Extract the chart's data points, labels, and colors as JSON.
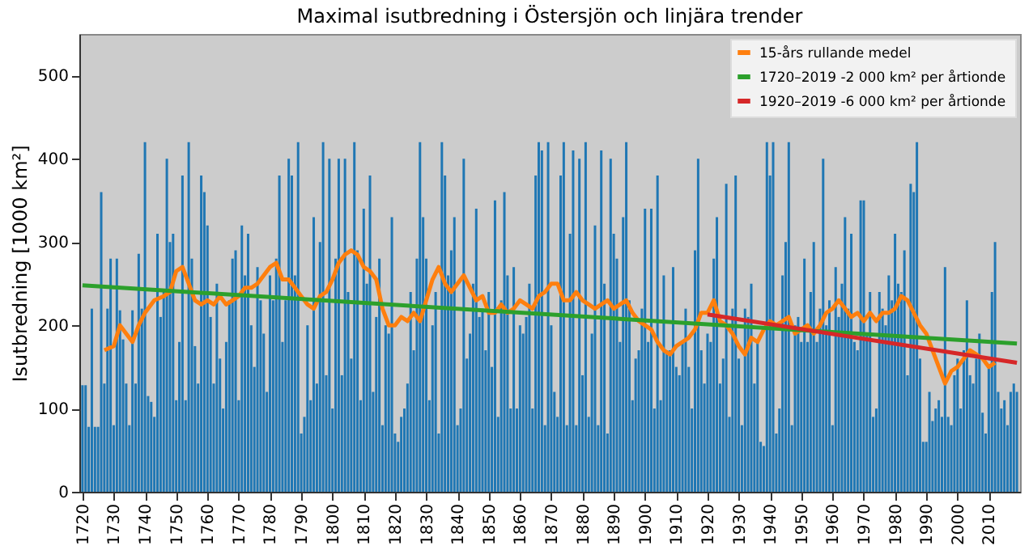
{
  "chart_data": {
    "type": "bar",
    "title": "Maximal isutbredning i Östersjön och linjära trender",
    "ylabel": "Isutbredning [1000 km²]",
    "xlim": [
      1719,
      2020
    ],
    "xticks": [
      1720,
      1730,
      1740,
      1750,
      1760,
      1770,
      1780,
      1790,
      1800,
      1810,
      1820,
      1830,
      1840,
      1850,
      1860,
      1870,
      1880,
      1890,
      1900,
      1910,
      1920,
      1930,
      1940,
      1950,
      1960,
      1970,
      1980,
      1990,
      2000,
      2010
    ],
    "ylim": [
      0,
      550
    ],
    "yticks": [
      0,
      100,
      200,
      300,
      400,
      500
    ],
    "grid": false,
    "legend": "top right",
    "series": [
      {
        "color": "#1f77b4",
        "x": [
          1720,
          1721,
          1722,
          1723,
          1724,
          1725,
          1726,
          1727,
          1728,
          1729,
          1730,
          1731,
          1732,
          1733,
          1734,
          1735,
          1736,
          1737,
          1738,
          1739,
          1740,
          1741,
          1742,
          1743,
          1744,
          1745,
          1746,
          1747,
          1748,
          1749,
          1750,
          1751,
          1752,
          1753,
          1754,
          1755,
          1756,
          1757,
          1758,
          1759,
          1760,
          1761,
          1762,
          1763,
          1764,
          1765,
          1766,
          1767,
          1768,
          1769,
          1770,
          1771,
          1772,
          1773,
          1774,
          1775,
          1776,
          1777,
          1778,
          1779,
          1780,
          1781,
          1782,
          1783,
          1784,
          1785,
          1786,
          1787,
          1788,
          1789,
          1790,
          1791,
          1792,
          1793,
          1794,
          1795,
          1796,
          1797,
          1798,
          1799,
          1800,
          1801,
          1802,
          1803,
          1804,
          1805,
          1806,
          1807,
          1808,
          1809,
          1810,
          1811,
          1812,
          1813,
          1814,
          1815,
          1816,
          1817,
          1818,
          1819,
          1820,
          1821,
          1822,
          1823,
          1824,
          1825,
          1826,
          1827,
          1828,
          1829,
          1830,
          1831,
          1832,
          1833,
          1834,
          1835,
          1836,
          1837,
          1838,
          1839,
          1840,
          1841,
          1842,
          1843,
          1844,
          1845,
          1846,
          1847,
          1848,
          1849,
          1850,
          1851,
          1852,
          1853,
          1854,
          1855,
          1856,
          1857,
          1858,
          1859,
          1860,
          1861,
          1862,
          1863,
          1864,
          1865,
          1866,
          1867,
          1868,
          1869,
          1870,
          1871,
          1872,
          1873,
          1874,
          1875,
          1876,
          1877,
          1878,
          1879,
          1880,
          1881,
          1882,
          1883,
          1884,
          1885,
          1886,
          1887,
          1888,
          1889,
          1890,
          1891,
          1892,
          1893,
          1894,
          1895,
          1896,
          1897,
          1898,
          1899,
          1900,
          1901,
          1902,
          1903,
          1904,
          1905,
          1906,
          1907,
          1908,
          1909,
          1910,
          1911,
          1912,
          1913,
          1914,
          1915,
          1916,
          1917,
          1918,
          1919,
          1920,
          1921,
          1922,
          1923,
          1924,
          1925,
          1926,
          1927,
          1928,
          1929,
          1930,
          1931,
          1932,
          1933,
          1934,
          1935,
          1936,
          1937,
          1938,
          1939,
          1940,
          1941,
          1942,
          1943,
          1944,
          1945,
          1946,
          1947,
          1948,
          1949,
          1950,
          1951,
          1952,
          1953,
          1954,
          1955,
          1956,
          1957,
          1958,
          1959,
          1960,
          1961,
          1962,
          1963,
          1964,
          1965,
          1966,
          1967,
          1968,
          1969,
          1970,
          1971,
          1972,
          1973,
          1974,
          1975,
          1976,
          1977,
          1978,
          1979,
          1980,
          1981,
          1982,
          1983,
          1984,
          1985,
          1986,
          1987,
          1988,
          1989,
          1990,
          1991,
          1992,
          1993,
          1994,
          1995,
          1996,
          1997,
          1998,
          1999,
          2000,
          2001,
          2002,
          2003,
          2004,
          2005,
          2006,
          2007,
          2008,
          2009,
          2010,
          2011,
          2012,
          2013,
          2014,
          2015,
          2016,
          2017,
          2018,
          2019
        ],
        "values": [
          128,
          128,
          78,
          220,
          78,
          78,
          360,
          130,
          220,
          280,
          80,
          280,
          218,
          183,
          130,
          80,
          218,
          130,
          286,
          220,
          420,
          115,
          108,
          90,
          310,
          210,
          240,
          400,
          300,
          310,
          110,
          180,
          380,
          110,
          420,
          280,
          175,
          130,
          380,
          360,
          320,
          210,
          130,
          250,
          160,
          100,
          180,
          230,
          280,
          290,
          110,
          320,
          260,
          310,
          200,
          150,
          270,
          230,
          190,
          120,
          260,
          230,
          280,
          380,
          180,
          230,
          400,
          380,
          260,
          420,
          70,
          90,
          200,
          110,
          330,
          130,
          300,
          420,
          140,
          400,
          100,
          280,
          400,
          140,
          400,
          240,
          160,
          420,
          290,
          110,
          340,
          250,
          380,
          120,
          210,
          280,
          80,
          200,
          190,
          330,
          70,
          60,
          90,
          100,
          130,
          240,
          170,
          280,
          420,
          330,
          280,
          110,
          200,
          240,
          70,
          420,
          380,
          260,
          290,
          330,
          80,
          100,
          400,
          160,
          190,
          250,
          340,
          210,
          220,
          170,
          240,
          150,
          350,
          90,
          230,
          360,
          260,
          100,
          270,
          100,
          200,
          190,
          210,
          250,
          100,
          380,
          420,
          410,
          80,
          420,
          200,
          120,
          90,
          380,
          420,
          80,
          310,
          410,
          80,
          400,
          140,
          420,
          90,
          190,
          320,
          80,
          410,
          250,
          70,
          400,
          310,
          280,
          180,
          330,
          420,
          230,
          110,
          160,
          170,
          220,
          340,
          180,
          340,
          100,
          380,
          110,
          260,
          170,
          170,
          270,
          150,
          140,
          180,
          220,
          150,
          100,
          290,
          400,
          170,
          130,
          190,
          180,
          280,
          330,
          130,
          160,
          370,
          90,
          220,
          380,
          160,
          80,
          220,
          210,
          250,
          130,
          180,
          60,
          55,
          420,
          380,
          420,
          70,
          100,
          260,
          300,
          420,
          80,
          200,
          210,
          180,
          280,
          180,
          240,
          300,
          180,
          220,
          400,
          200,
          230,
          80,
          270,
          210,
          250,
          330,
          220,
          310,
          180,
          170,
          350,
          350,
          190,
          240,
          90,
          100,
          240,
          220,
          200,
          260,
          230,
          310,
          250,
          240,
          290,
          140,
          370,
          360,
          420,
          160,
          60,
          60,
          120,
          85,
          100,
          110,
          90,
          270,
          90,
          80,
          140,
          160,
          100,
          170,
          230,
          140,
          130,
          160,
          190,
          95,
          70,
          150,
          240,
          300,
          120,
          100,
          110,
          80,
          120,
          130,
          120
        ]
      },
      {
        "type": "line",
        "name": "15-års rullande medel",
        "color": "#ff7f0e",
        "x": [
          1727,
          1730,
          1732,
          1734,
          1736,
          1738,
          1740,
          1743,
          1746,
          1748,
          1750,
          1752,
          1754,
          1756,
          1758,
          1760,
          1762,
          1764,
          1766,
          1768,
          1770,
          1772,
          1774,
          1776,
          1778,
          1780,
          1782,
          1784,
          1786,
          1788,
          1790,
          1792,
          1794,
          1796,
          1798,
          1800,
          1802,
          1804,
          1806,
          1808,
          1810,
          1812,
          1814,
          1816,
          1818,
          1820,
          1822,
          1824,
          1826,
          1828,
          1830,
          1832,
          1834,
          1836,
          1838,
          1840,
          1842,
          1844,
          1846,
          1848,
          1850,
          1852,
          1854,
          1856,
          1858,
          1860,
          1862,
          1864,
          1866,
          1868,
          1870,
          1872,
          1874,
          1876,
          1878,
          1880,
          1882,
          1884,
          1886,
          1888,
          1890,
          1892,
          1894,
          1896,
          1898,
          1900,
          1902,
          1904,
          1906,
          1908,
          1910,
          1912,
          1914,
          1916,
          1918,
          1920,
          1922,
          1924,
          1926,
          1928,
          1930,
          1932,
          1934,
          1936,
          1938,
          1940,
          1942,
          1944,
          1946,
          1948,
          1950,
          1952,
          1954,
          1956,
          1958,
          1960,
          1962,
          1964,
          1966,
          1968,
          1970,
          1972,
          1974,
          1976,
          1978,
          1980,
          1982,
          1984,
          1986,
          1988,
          1990,
          1992,
          1994,
          1996,
          1998,
          2000,
          2002,
          2004,
          2006,
          2008,
          2010,
          2012
        ],
        "values": [
          170,
          175,
          200,
          190,
          180,
          200,
          215,
          230,
          235,
          240,
          265,
          270,
          250,
          230,
          225,
          230,
          225,
          235,
          225,
          230,
          235,
          245,
          245,
          250,
          260,
          270,
          275,
          255,
          255,
          245,
          235,
          225,
          220,
          235,
          240,
          255,
          275,
          285,
          290,
          285,
          270,
          265,
          255,
          220,
          200,
          200,
          210,
          205,
          215,
          205,
          230,
          255,
          270,
          250,
          240,
          250,
          260,
          245,
          230,
          235,
          215,
          215,
          225,
          215,
          220,
          230,
          225,
          220,
          235,
          240,
          250,
          250,
          230,
          230,
          240,
          230,
          225,
          220,
          225,
          230,
          220,
          225,
          230,
          215,
          205,
          200,
          195,
          180,
          170,
          165,
          175,
          180,
          185,
          195,
          215,
          215,
          230,
          205,
          200,
          190,
          175,
          165,
          185,
          180,
          195,
          205,
          200,
          205,
          210,
          190,
          195,
          200,
          190,
          200,
          215,
          220,
          230,
          220,
          210,
          215,
          205,
          215,
          205,
          215,
          215,
          220,
          235,
          230,
          215,
          200,
          190,
          170,
          150,
          130,
          145,
          150,
          160,
          170,
          165,
          160,
          150,
          155
        ]
      },
      {
        "type": "line",
        "name": "1720–2019  -2 000 km² per årtionde",
        "color": "#2ca02c",
        "x": [
          1720,
          2019
        ],
        "values": [
          248,
          178
        ]
      },
      {
        "type": "line",
        "name": "1920–2019  -6 000 km² per årtionde",
        "color": "#d62728",
        "x": [
          1920,
          2019
        ],
        "values": [
          213,
          155
        ]
      }
    ]
  }
}
